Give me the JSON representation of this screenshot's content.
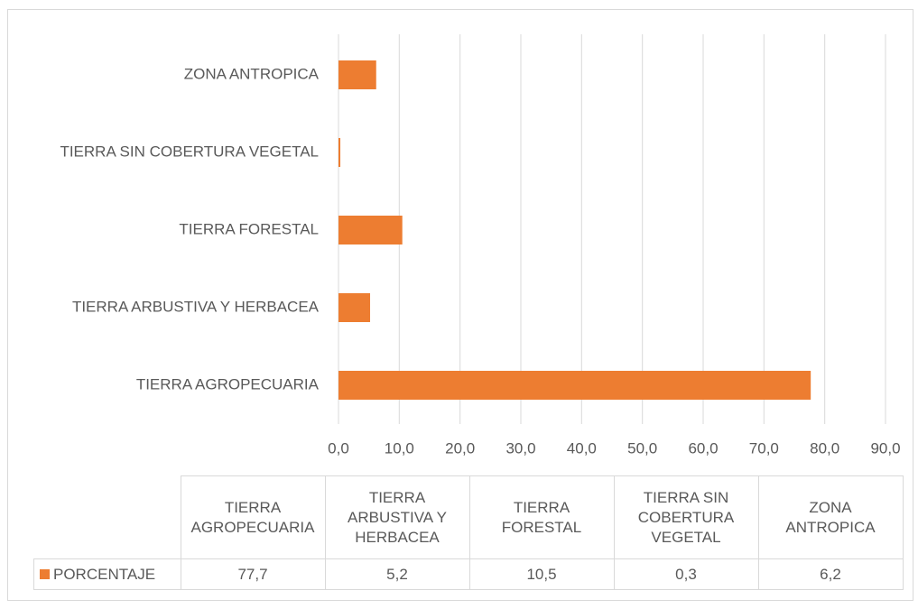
{
  "chart_data": {
    "type": "bar",
    "orientation": "horizontal",
    "categories": [
      "TIERRA AGROPECUARIA",
      "TIERRA ARBUSTIVA Y HERBACEA",
      "TIERRA FORESTAL",
      "TIERRA SIN COBERTURA VEGETAL",
      "ZONA ANTROPICA"
    ],
    "series": [
      {
        "name": "PORCENTAJE",
        "color": "#ed7d31",
        "values": [
          77.7,
          5.2,
          10.5,
          0.3,
          6.2
        ],
        "value_labels": [
          "77,7",
          "5,2",
          "10,5",
          "0,3",
          "6,2"
        ]
      }
    ],
    "xlim": [
      0,
      90
    ],
    "xticks": [
      {
        "value": 0,
        "label": "0,0"
      },
      {
        "value": 10,
        "label": "10,0"
      },
      {
        "value": 20,
        "label": "20,0"
      },
      {
        "value": 30,
        "label": "30,0"
      },
      {
        "value": 40,
        "label": "40,0"
      },
      {
        "value": 50,
        "label": "50,0"
      },
      {
        "value": 60,
        "label": "60,0"
      },
      {
        "value": 70,
        "label": "70,0"
      },
      {
        "value": 80,
        "label": "80,0"
      },
      {
        "value": 90,
        "label": "90,0"
      }
    ],
    "grid": true,
    "data_table": true
  }
}
